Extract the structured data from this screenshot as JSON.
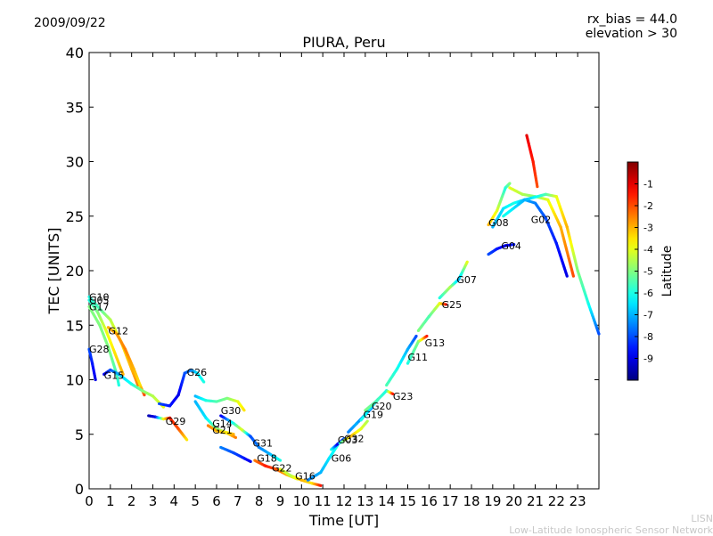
{
  "chart_data": {
    "type": "scatter",
    "title": "PIURA, Peru",
    "date": "2009/09/22",
    "rx_bias": "rx_bias = 44.0",
    "elevation": "elevation > 30",
    "xlabel": "Time [UT]",
    "ylabel": "TEC [UNITS]",
    "xlim": [
      0,
      24
    ],
    "ylim": [
      0,
      40
    ],
    "xticks": [
      0,
      1,
      2,
      3,
      4,
      5,
      6,
      7,
      8,
      9,
      10,
      11,
      12,
      13,
      14,
      15,
      16,
      17,
      18,
      19,
      20,
      21,
      22,
      23
    ],
    "yticks": [
      0,
      5,
      10,
      15,
      20,
      25,
      30,
      35,
      40
    ],
    "colorbar": {
      "label": "Latitude",
      "range": [
        -10,
        0
      ],
      "ticks": [
        -1,
        -2,
        -3,
        -4,
        -5,
        -6,
        -7,
        -8,
        -9
      ]
    },
    "footer": [
      "LISN",
      "Low-Latitude Ionospheric Sensor Network"
    ],
    "series": [
      {
        "name": "G10",
        "label_at": [
          0.0,
          17.6
        ],
        "points": [
          [
            0.0,
            17.6,
            -6
          ],
          [
            0.5,
            16.5,
            -5.5
          ],
          [
            1.0,
            15.5,
            -4.5
          ],
          [
            1.5,
            13.5,
            -3.5
          ],
          [
            2.0,
            11.0,
            -3
          ],
          [
            2.3,
            9.5,
            -2.5
          ]
        ]
      },
      {
        "name": "G05",
        "label_at": [
          0.0,
          17.3
        ],
        "points": [
          [
            0.0,
            17.3,
            -6
          ],
          [
            0.4,
            16.2,
            -5
          ],
          [
            0.8,
            14.5,
            -4
          ],
          [
            1.2,
            12.5,
            -3.5
          ],
          [
            1.6,
            10.5,
            -3
          ]
        ]
      },
      {
        "name": "G17",
        "label_at": [
          0.0,
          16.7
        ],
        "points": [
          [
            0.0,
            16.7,
            -5
          ],
          [
            0.5,
            15.0,
            -5
          ],
          [
            0.9,
            13.0,
            -5
          ],
          [
            1.3,
            10.5,
            -5.5
          ],
          [
            1.4,
            9.5,
            -6
          ]
        ]
      },
      {
        "name": "G12",
        "label_at": [
          0.9,
          14.5
        ],
        "points": [
          [
            0.9,
            14.8,
            -3
          ],
          [
            1.3,
            14.2,
            -2.8
          ],
          [
            1.7,
            12.8,
            -2.5
          ],
          [
            2.1,
            11.0,
            -3
          ],
          [
            2.4,
            9.5,
            -3.5
          ],
          [
            2.6,
            8.6,
            -2
          ]
        ]
      },
      {
        "name": "G28",
        "label_at": [
          0.0,
          12.8
        ],
        "points": [
          [
            0.0,
            12.8,
            -8
          ],
          [
            0.15,
            11.5,
            -8.5
          ],
          [
            0.3,
            10.0,
            -9
          ]
        ]
      },
      {
        "name": "G15",
        "label_at": [
          0.7,
          10.4
        ],
        "points": [
          [
            0.7,
            10.5,
            -9
          ],
          [
            1.0,
            10.9,
            -8
          ],
          [
            1.4,
            10.5,
            -7
          ],
          [
            2.0,
            9.6,
            -6
          ],
          [
            2.5,
            9.0,
            -5
          ],
          [
            3.0,
            8.5,
            -4.5
          ],
          [
            3.5,
            7.5,
            -4
          ]
        ]
      },
      {
        "name": "G26",
        "label_at": [
          4.6,
          10.7
        ],
        "points": [
          [
            3.3,
            7.8,
            -8
          ],
          [
            3.8,
            7.6,
            -8.5
          ],
          [
            4.2,
            8.6,
            -9
          ],
          [
            4.5,
            10.6,
            -8
          ],
          [
            4.8,
            10.9,
            -7.5
          ],
          [
            5.1,
            10.6,
            -6.5
          ],
          [
            5.4,
            9.8,
            -6
          ]
        ]
      },
      {
        "name": "G29",
        "label_at": [
          3.6,
          6.2
        ],
        "points": [
          [
            2.8,
            6.7,
            -9.5
          ],
          [
            3.1,
            6.6,
            -9
          ],
          [
            3.5,
            6.4,
            -4
          ],
          [
            3.8,
            6.5,
            -1.5
          ],
          [
            4.2,
            5.5,
            -2
          ],
          [
            4.6,
            4.5,
            -3.5
          ]
        ]
      },
      {
        "name": "G30",
        "label_at": [
          6.2,
          7.2
        ],
        "points": [
          [
            5.0,
            8.5,
            -7
          ],
          [
            5.5,
            8.1,
            -6
          ],
          [
            6.0,
            8.0,
            -5.5
          ],
          [
            6.5,
            8.3,
            -5
          ],
          [
            7.0,
            8.0,
            -4
          ],
          [
            7.3,
            7.2,
            -3.5
          ]
        ]
      },
      {
        "name": "G14",
        "label_at": [
          5.8,
          6.0
        ],
        "points": [
          [
            5.0,
            8.0,
            -7
          ],
          [
            5.5,
            6.5,
            -6.5
          ],
          [
            6.0,
            5.5,
            -5
          ],
          [
            6.4,
            5.2,
            -4
          ],
          [
            6.8,
            5.0,
            -3
          ]
        ]
      },
      {
        "name": "G21",
        "label_at": [
          5.8,
          5.4
        ],
        "points": [
          [
            5.6,
            5.8,
            -2.5
          ],
          [
            6.0,
            5.3,
            -3
          ],
          [
            6.5,
            5.1,
            -3.5
          ],
          [
            6.9,
            4.7,
            -2.5
          ]
        ]
      },
      {
        "name": "G31",
        "label_at": [
          7.7,
          4.2
        ],
        "points": [
          [
            6.2,
            6.7,
            -9
          ],
          [
            6.8,
            6.0,
            -6
          ],
          [
            7.2,
            5.4,
            -4
          ],
          [
            7.6,
            4.8,
            -8
          ],
          [
            8.0,
            3.8,
            -7.5
          ],
          [
            8.5,
            3.2,
            -7
          ],
          [
            9.0,
            2.6,
            -6
          ]
        ]
      },
      {
        "name": "G18",
        "label_at": [
          7.9,
          2.8
        ],
        "points": [
          [
            6.2,
            3.8,
            -7.5
          ],
          [
            6.8,
            3.3,
            -8
          ],
          [
            7.3,
            2.8,
            -8.5
          ],
          [
            7.6,
            2.5,
            -9
          ]
        ]
      },
      {
        "name": "G22",
        "label_at": [
          8.6,
          1.9
        ],
        "points": [
          [
            7.8,
            2.6,
            -2.5
          ],
          [
            8.3,
            2.1,
            -1.5
          ],
          [
            8.8,
            1.8,
            -2
          ],
          [
            9.3,
            1.3,
            -3
          ],
          [
            9.8,
            0.9,
            -4
          ]
        ]
      },
      {
        "name": "G16",
        "label_at": [
          9.7,
          1.2
        ],
        "points": [
          [
            9.0,
            1.8,
            -4
          ],
          [
            9.5,
            1.2,
            -4.5
          ],
          [
            10.0,
            0.8,
            -3
          ],
          [
            10.5,
            0.5,
            -3.5
          ],
          [
            10.9,
            0.3,
            -1.5
          ]
        ]
      },
      {
        "name": "G06",
        "label_at": [
          11.4,
          2.8
        ],
        "points": [
          [
            10.3,
            0.8,
            -7.5
          ],
          [
            10.9,
            1.5,
            -7
          ],
          [
            11.3,
            2.8,
            -6.5
          ],
          [
            11.7,
            4.0,
            -6
          ]
        ]
      },
      {
        "name": "G03",
        "label_at": [
          11.7,
          4.5
        ],
        "points": [
          [
            11.4,
            3.6,
            -6
          ],
          [
            11.7,
            4.1,
            -9
          ],
          [
            12.0,
            4.6,
            -8
          ]
        ]
      },
      {
        "name": "G32",
        "label_at": [
          12.0,
          4.6
        ],
        "points": [
          [
            11.8,
            4.2,
            -6
          ],
          [
            12.3,
            4.8,
            -3
          ],
          [
            12.8,
            5.5,
            -4
          ],
          [
            13.1,
            6.2,
            -4.5
          ]
        ]
      },
      {
        "name": "G19",
        "label_at": [
          12.9,
          6.8
        ],
        "points": [
          [
            12.2,
            5.2,
            -7.5
          ],
          [
            12.6,
            6.0,
            -7
          ],
          [
            13.0,
            6.8,
            -8
          ],
          [
            13.3,
            7.4,
            -7.5
          ]
        ]
      },
      {
        "name": "G20",
        "label_at": [
          13.3,
          7.6
        ],
        "points": [
          [
            12.8,
            6.3,
            -6
          ],
          [
            13.2,
            7.3,
            -6.5
          ],
          [
            13.6,
            8.2,
            -7
          ]
        ]
      },
      {
        "name": "G23",
        "label_at": [
          14.3,
          8.5
        ],
        "points": [
          [
            13.0,
            7.2,
            -5
          ],
          [
            13.5,
            8.0,
            -5.5
          ],
          [
            14.0,
            9.0,
            -6
          ],
          [
            14.3,
            8.7,
            -1.5
          ]
        ]
      },
      {
        "name": "G11",
        "label_at": [
          15.0,
          12.1
        ],
        "points": [
          [
            14.0,
            9.5,
            -5.5
          ],
          [
            14.5,
            11.0,
            -6
          ],
          [
            15.0,
            12.8,
            -7
          ],
          [
            15.4,
            14.0,
            -8
          ]
        ]
      },
      {
        "name": "G13",
        "label_at": [
          15.8,
          13.4
        ],
        "points": [
          [
            15.0,
            11.5,
            -6
          ],
          [
            15.5,
            13.5,
            -5
          ],
          [
            15.9,
            14.0,
            -1.5
          ]
        ]
      },
      {
        "name": "G25",
        "label_at": [
          16.6,
          16.9
        ],
        "points": [
          [
            15.5,
            14.5,
            -5
          ],
          [
            16.0,
            15.8,
            -5.5
          ],
          [
            16.5,
            17.0,
            -4
          ],
          [
            16.8,
            16.9,
            -1.5
          ]
        ]
      },
      {
        "name": "G07",
        "label_at": [
          17.3,
          19.2
        ],
        "points": [
          [
            16.5,
            17.5,
            -6
          ],
          [
            17.0,
            18.5,
            -4.5
          ],
          [
            17.4,
            19.2,
            -7
          ],
          [
            17.8,
            20.8,
            -4
          ]
        ]
      },
      {
        "name": "G08",
        "label_at": [
          18.8,
          24.4
        ],
        "points": [
          [
            18.8,
            24.2,
            -3
          ],
          [
            19.2,
            25.5,
            -4
          ],
          [
            19.6,
            27.6,
            -6
          ],
          [
            19.8,
            28.0,
            -5
          ]
        ]
      },
      {
        "name": "G04",
        "label_at": [
          19.4,
          22.3
        ],
        "points": [
          [
            18.8,
            21.5,
            -8
          ],
          [
            19.2,
            22.0,
            -8.5
          ],
          [
            19.6,
            22.3,
            -9
          ],
          [
            20.0,
            22.4,
            -8.5
          ]
        ]
      },
      {
        "name": "G02",
        "label_at": [
          20.8,
          24.7
        ],
        "points": [
          [
            19.0,
            24.0,
            -7
          ],
          [
            19.5,
            25.7,
            -6.5
          ],
          [
            20.0,
            26.2,
            -6
          ],
          [
            20.5,
            26.5,
            -7
          ],
          [
            21.0,
            26.2,
            -7.5
          ],
          [
            21.5,
            24.8,
            -8
          ],
          [
            22.0,
            22.5,
            -8.5
          ],
          [
            22.5,
            19.5,
            -9
          ]
        ]
      },
      {
        "name": "",
        "label_at": null,
        "points": [
          [
            19.8,
            27.6,
            -4
          ],
          [
            20.4,
            27.0,
            -4.5
          ],
          [
            21.0,
            26.8,
            -5
          ],
          [
            21.6,
            26.5,
            -4
          ],
          [
            22.2,
            24.0,
            -3
          ],
          [
            22.8,
            19.5,
            -2
          ]
        ]
      },
      {
        "name": "",
        "label_at": null,
        "points": [
          [
            20.6,
            32.4,
            -1
          ],
          [
            20.9,
            30.0,
            -1.5
          ],
          [
            21.1,
            27.7,
            -2
          ]
        ]
      },
      {
        "name": "",
        "label_at": null,
        "points": [
          [
            19.5,
            25.0,
            -6
          ],
          [
            20.5,
            26.5,
            -7
          ],
          [
            21.5,
            27.0,
            -5.5
          ],
          [
            22.0,
            26.8,
            -4
          ],
          [
            22.5,
            24.0,
            -3
          ],
          [
            23.0,
            20.0,
            -5
          ],
          [
            23.5,
            17.0,
            -6
          ],
          [
            24.0,
            14.2,
            -8
          ]
        ]
      }
    ]
  }
}
